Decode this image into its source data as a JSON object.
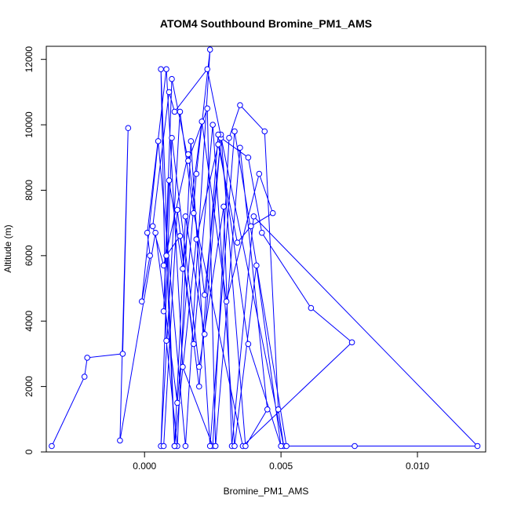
{
  "chart_data": {
    "type": "line",
    "title": "ATOM4 Southbound Bromine_PM1_AMS",
    "xlabel": "Bromine_PM1_AMS",
    "ylabel": "Altitude (m)",
    "xlim": [
      -0.0036,
      0.0125
    ],
    "ylim": [
      0,
      12400
    ],
    "x_ticks": [
      0.0,
      0.005,
      0.01
    ],
    "x_tick_labels": [
      "0.000",
      "0.005",
      "0.010"
    ],
    "y_ticks": [
      0,
      2000,
      4000,
      6000,
      8000,
      10000,
      12000
    ],
    "y_tick_labels": [
      "0",
      "2000",
      "4000",
      "6000",
      "8000",
      "10000",
      "12000"
    ],
    "grid": false,
    "legend": "none",
    "series_color": "#0000ff",
    "x": [
      -0.0034,
      -0.0022,
      -0.0021,
      -0.0008,
      -0.0006,
      -0.0009,
      0.0004,
      0.0012,
      0.0019,
      0.0024,
      0.0015,
      0.0005,
      -0.0001,
      0.0002,
      0.0001,
      0.0008,
      0.0014,
      0.0025,
      0.0031,
      0.0035,
      0.0044,
      0.0049,
      0.0051,
      0.0023,
      0.0011,
      0.0009,
      0.0003,
      0.0007,
      0.0016,
      0.0022,
      0.0028,
      0.0038,
      0.0043,
      0.0061,
      0.0076,
      0.0036,
      0.0018,
      0.0013,
      0.0006,
      0.001,
      0.002,
      0.0029,
      0.0032,
      0.004,
      0.0122,
      0.0077,
      0.0052,
      0.0033,
      0.0024,
      0.0017,
      0.0012,
      0.0008,
      0.0006,
      0.0011,
      0.0019,
      0.0027,
      0.0034,
      0.0039,
      0.0047,
      0.0042,
      0.003,
      0.0021,
      0.0014,
      0.0009,
      0.0007,
      0.001,
      0.0016,
      0.0023,
      0.0026,
      0.0035,
      0.0045,
      0.0037,
      0.0028,
      0.0022,
      0.0015,
      0.0011,
      0.0008,
      0.0013,
      0.0018,
      0.0025,
      0.0033,
      0.0041,
      0.005,
      0.0038,
      0.0027,
      0.002,
      0.0012,
      0.0007
    ],
    "y": [
      180,
      2300,
      2880,
      3000,
      9900,
      350,
      6700,
      1500,
      8500,
      12300,
      180,
      9500,
      4600,
      6000,
      6700,
      11700,
      2600,
      180,
      9600,
      10600,
      9800,
      1300,
      180,
      11700,
      10400,
      11000,
      6900,
      5700,
      9100,
      4800,
      9600,
      9000,
      6700,
      4400,
      3350,
      180,
      7300,
      10400,
      180,
      9600,
      2600,
      7500,
      180,
      7200,
      180,
      180,
      180,
      9800,
      180,
      9500,
      180,
      3400,
      11700,
      180,
      6500,
      9400,
      6400,
      6900,
      7300,
      8500,
      4600,
      10100,
      5600,
      8300,
      4300,
      11400,
      8900,
      10500,
      180,
      9300,
      1300,
      180,
      9700,
      3600,
      7200,
      180,
      6000,
      6600,
      3300,
      10000,
      180,
      5700,
      180,
      3300,
      9700,
      2000,
      7400,
      180
    ]
  }
}
